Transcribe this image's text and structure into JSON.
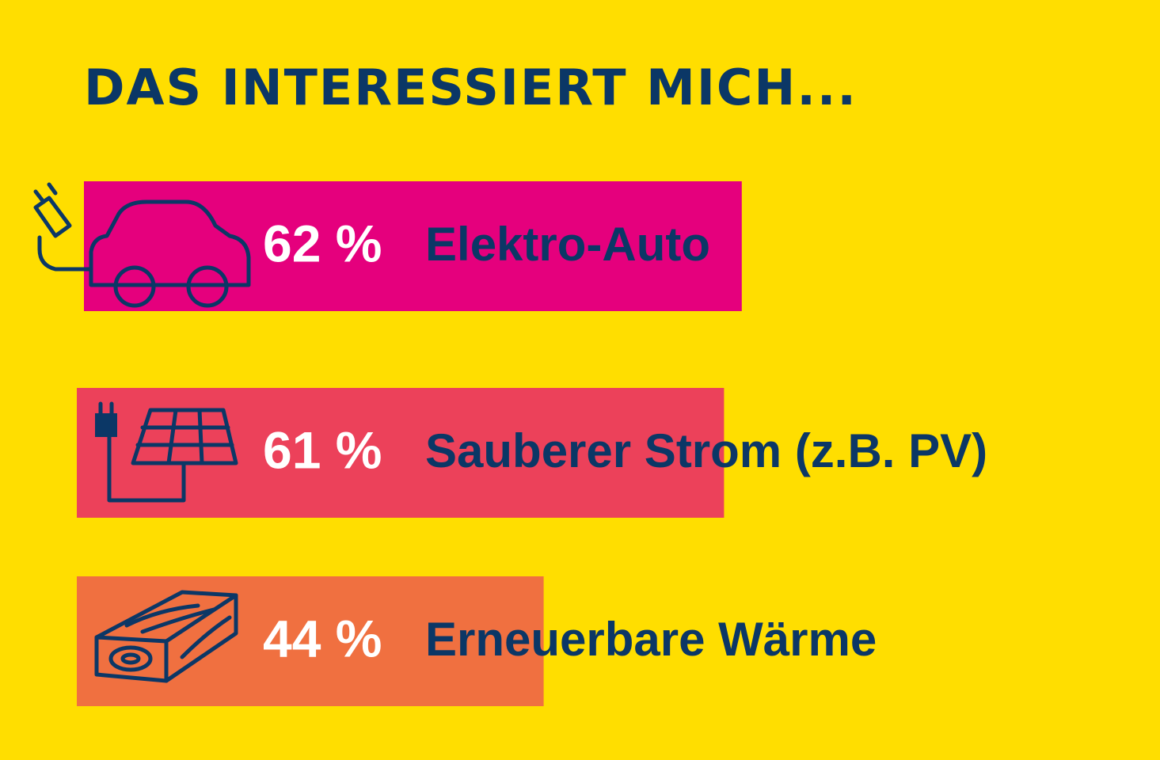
{
  "chart_data": {
    "type": "hbar",
    "title": "DAS INTERESSIERT MICH...",
    "categories": [
      "Elektro-Auto",
      "Sauberer Strom (z.B. PV)",
      "Erneuerbare Wärme"
    ],
    "values": [
      62,
      61,
      44
    ],
    "value_labels": [
      "62 %",
      "61 %",
      "44 %"
    ],
    "colors": [
      "#e5007d",
      "#ec415a",
      "#f07040"
    ]
  }
}
